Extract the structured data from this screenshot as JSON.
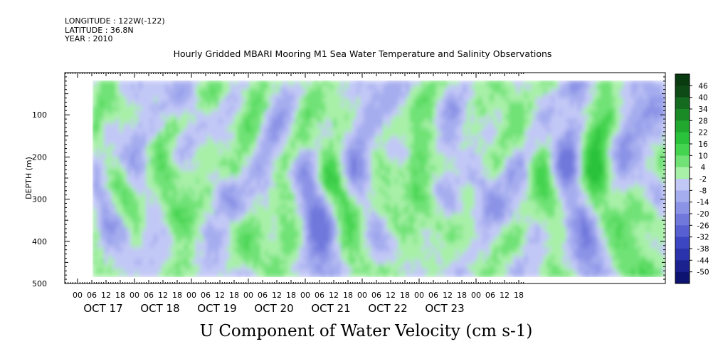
{
  "header": {
    "longitude": "LONGITUDE : 122W(-122)",
    "latitude": "LATITUDE : 36.8N",
    "year": "YEAR : 2010"
  },
  "title": "Hourly Gridded MBARI Mooring M1 Sea Water Temperature and Salinity Observations",
  "chart_data": {
    "type": "heatmap",
    "title": "U Component of Water Velocity (cm s-1)",
    "ylabel": "DEPTH (m)",
    "yticks": [
      "100",
      "200",
      "300",
      "400",
      "500"
    ],
    "ylim": [
      500,
      0
    ],
    "y_inverted": true,
    "hour_tick_labels": [
      "00",
      "06",
      "12",
      "18"
    ],
    "days": [
      "OCT 17",
      "OCT 18",
      "OCT 19",
      "OCT 20",
      "OCT 21",
      "OCT 22",
      "OCT 23"
    ],
    "colorbar_levels": [
      "46",
      "40",
      "34",
      "28",
      "22",
      "16",
      "10",
      "4",
      "-2",
      "-8",
      "-14",
      "-20",
      "-26",
      "-32",
      "-38",
      "-44",
      "-50"
    ],
    "colorbar_colors": [
      "#0e4a16",
      "#146b1f",
      "#1a8a27",
      "#20a82f",
      "#2ac23a",
      "#45d450",
      "#70e276",
      "#a8f0a8",
      "#c2c8f6",
      "#a6adef",
      "#8b93e6",
      "#7078dc",
      "#5660d0",
      "#3d46c2",
      "#2a33ab",
      "#1b2290",
      "#0d1370"
    ],
    "data_summary": "Alternating vertical bands of positive (green) and negative (blue) U velocity, mostly within -20 to +20 cm/s, from about 20 m to 485 m depth."
  }
}
